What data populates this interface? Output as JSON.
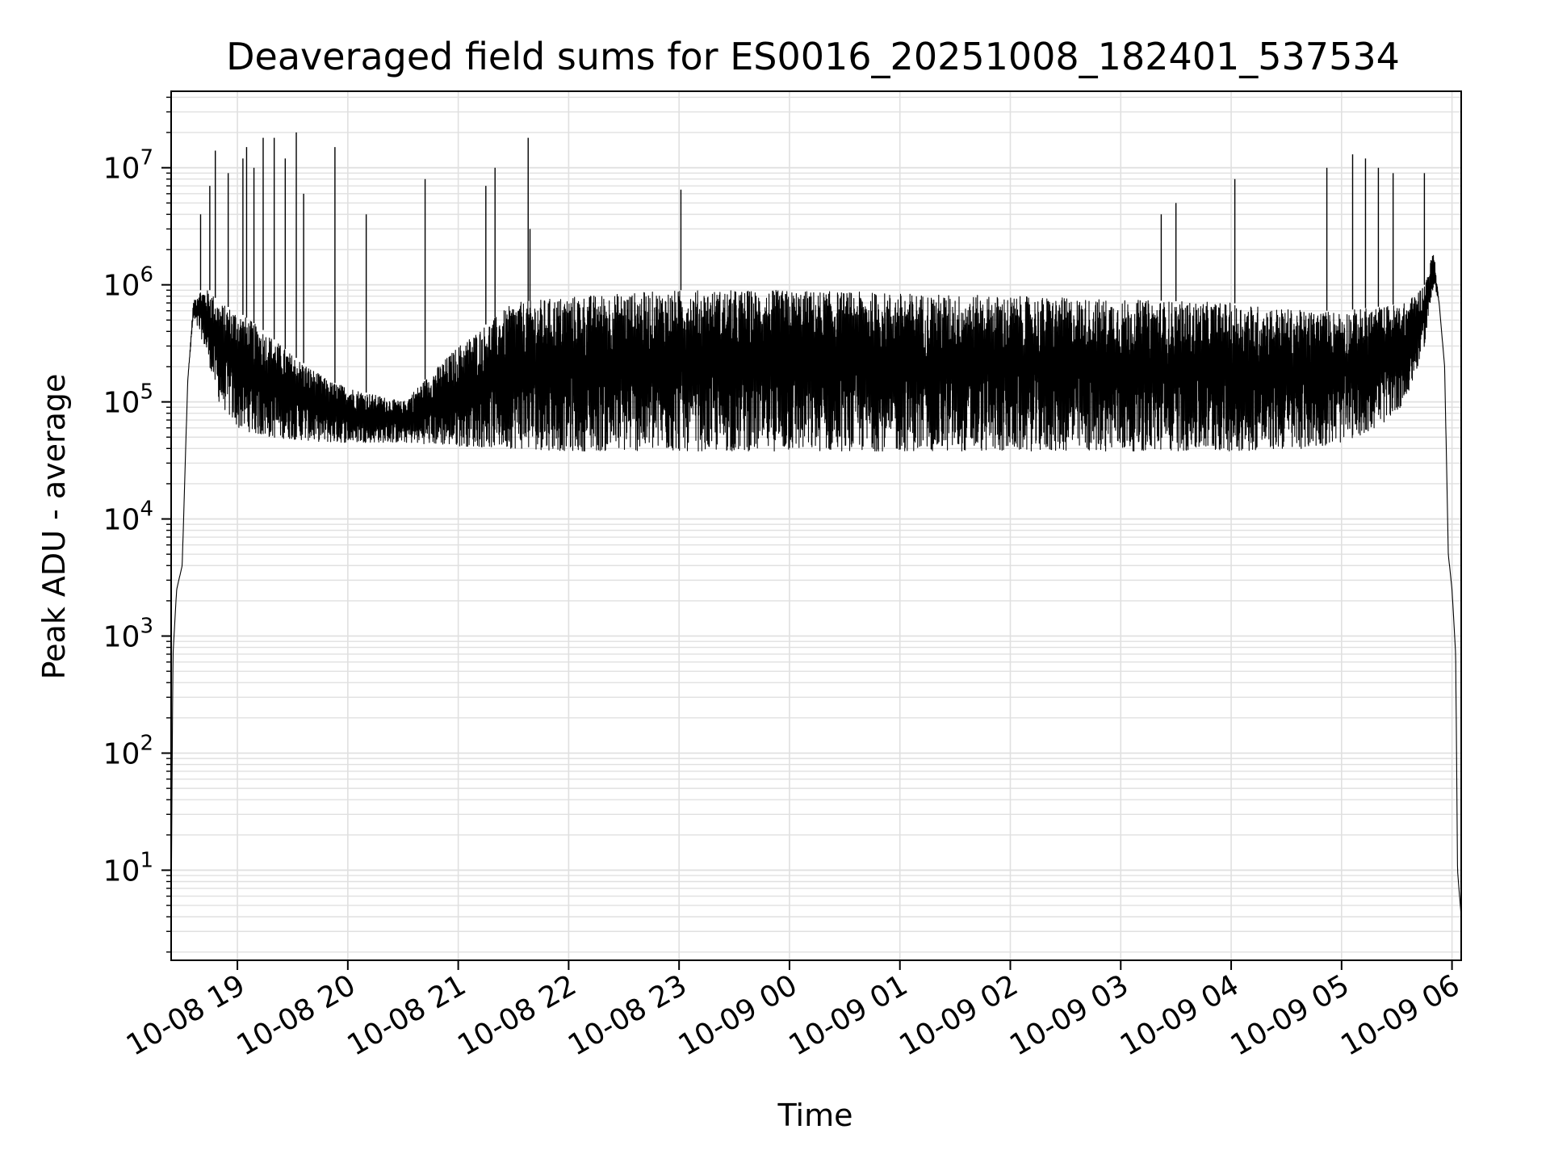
{
  "chart_data": {
    "type": "line",
    "title": "Deaveraged field sums for ES0016_20251008_182401_537534",
    "xlabel": "Time",
    "ylabel": "Peak ADU - average",
    "yscale": "log",
    "ylim": [
      1.7,
      45000000
    ],
    "xlim": [
      "2025-10-08 18:24",
      "2025-10-09 06:05"
    ],
    "x_ticks": [
      "10-08 19",
      "10-08 20",
      "10-08 21",
      "10-08 22",
      "10-08 23",
      "10-09 00",
      "10-09 01",
      "10-09 02",
      "10-09 03",
      "10-09 04",
      "10-09 05",
      "10-09 06"
    ],
    "y_ticks": [
      {
        "base": "10",
        "exp": "1"
      },
      {
        "base": "10",
        "exp": "2"
      },
      {
        "base": "10",
        "exp": "3"
      },
      {
        "base": "10",
        "exp": "4"
      },
      {
        "base": "10",
        "exp": "5"
      },
      {
        "base": "10",
        "exp": "6"
      },
      {
        "base": "10",
        "exp": "7"
      }
    ],
    "grid": true,
    "line_color": "#000000",
    "grid_color": "#e0e0e0",
    "series": [
      {
        "x": [
          "2025-10-08 18:24",
          "2025-10-08 18:25",
          "2025-10-08 18:27",
          "2025-10-08 18:30",
          "2025-10-08 18:33",
          "2025-10-08 18:36",
          "2025-10-08 18:39",
          "2025-10-08 18:42",
          "2025-10-08 18:45",
          "2025-10-08 18:50",
          "2025-10-08 19:00",
          "2025-10-08 19:15",
          "2025-10-08 19:30",
          "2025-10-08 19:50",
          "2025-10-08 20:10",
          "2025-10-08 20:30",
          "2025-10-08 21:00",
          "2025-10-08 21:30",
          "2025-10-08 22:00",
          "2025-10-08 22:30",
          "2025-10-08 23:00",
          "2025-10-08 23:30",
          "2025-10-09 00:00",
          "2025-10-09 01:00",
          "2025-10-09 02:00",
          "2025-10-09 03:00",
          "2025-10-09 04:00",
          "2025-10-09 04:40",
          "2025-10-09 05:00",
          "2025-10-09 05:20",
          "2025-10-09 05:35",
          "2025-10-09 05:45",
          "2025-10-09 05:50",
          "2025-10-09 05:53",
          "2025-10-09 05:56",
          "2025-10-09 05:58",
          "2025-10-09 06:00",
          "2025-10-09 06:02",
          "2025-10-09 06:03",
          "2025-10-09 06:05"
        ],
        "peak": [
          4,
          700,
          2500,
          4000,
          150000,
          700000,
          900000,
          900000,
          900000,
          700000,
          600000,
          400000,
          250000,
          150000,
          120000,
          100000,
          300000,
          700000,
          800000,
          850000,
          900000,
          900000,
          900000,
          850000,
          800000,
          750000,
          700000,
          600000,
          600000,
          650000,
          700000,
          1000000,
          2000000,
          700000,
          200000,
          5000,
          2500,
          700,
          10,
          4
        ],
        "low": [
          4,
          700,
          2500,
          4000,
          150000,
          500000,
          400000,
          300000,
          200000,
          100000,
          60000,
          50000,
          48000,
          45000,
          45000,
          45000,
          42000,
          40000,
          38000,
          38000,
          38000,
          38000,
          38000,
          38000,
          38000,
          38000,
          38000,
          40000,
          45000,
          60000,
          100000,
          300000,
          1000000,
          700000,
          200000,
          5000,
          2500,
          700,
          10,
          4
        ]
      }
    ],
    "spikes": [
      {
        "x": "2025-10-08 18:40",
        "y": 4000000
      },
      {
        "x": "2025-10-08 18:45",
        "y": 7000000
      },
      {
        "x": "2025-10-08 18:48",
        "y": 14000000
      },
      {
        "x": "2025-10-08 18:55",
        "y": 9000000
      },
      {
        "x": "2025-10-08 19:03",
        "y": 12000000
      },
      {
        "x": "2025-10-08 19:05",
        "y": 15000000
      },
      {
        "x": "2025-10-08 19:09",
        "y": 10000000
      },
      {
        "x": "2025-10-08 19:14",
        "y": 18000000
      },
      {
        "x": "2025-10-08 19:20",
        "y": 18000000
      },
      {
        "x": "2025-10-08 19:26",
        "y": 12000000
      },
      {
        "x": "2025-10-08 19:32",
        "y": 20000000
      },
      {
        "x": "2025-10-08 19:36",
        "y": 6000000
      },
      {
        "x": "2025-10-08 19:53",
        "y": 15000000
      },
      {
        "x": "2025-10-08 20:10",
        "y": 4000000
      },
      {
        "x": "2025-10-08 20:42",
        "y": 8000000
      },
      {
        "x": "2025-10-08 21:15",
        "y": 7000000
      },
      {
        "x": "2025-10-08 21:20",
        "y": 10000000
      },
      {
        "x": "2025-10-08 21:38",
        "y": 18000000
      },
      {
        "x": "2025-10-08 21:39",
        "y": 3000000
      },
      {
        "x": "2025-10-08 23:01",
        "y": 6500000
      },
      {
        "x": "2025-10-09 03:22",
        "y": 4000000
      },
      {
        "x": "2025-10-09 03:30",
        "y": 5000000
      },
      {
        "x": "2025-10-09 04:02",
        "y": 8000000
      },
      {
        "x": "2025-10-09 04:52",
        "y": 10000000
      },
      {
        "x": "2025-10-09 05:06",
        "y": 13000000
      },
      {
        "x": "2025-10-09 05:13",
        "y": 12000000
      },
      {
        "x": "2025-10-09 05:20",
        "y": 10000000
      },
      {
        "x": "2025-10-09 05:28",
        "y": 9000000
      },
      {
        "x": "2025-10-09 05:45",
        "y": 9000000
      }
    ]
  }
}
